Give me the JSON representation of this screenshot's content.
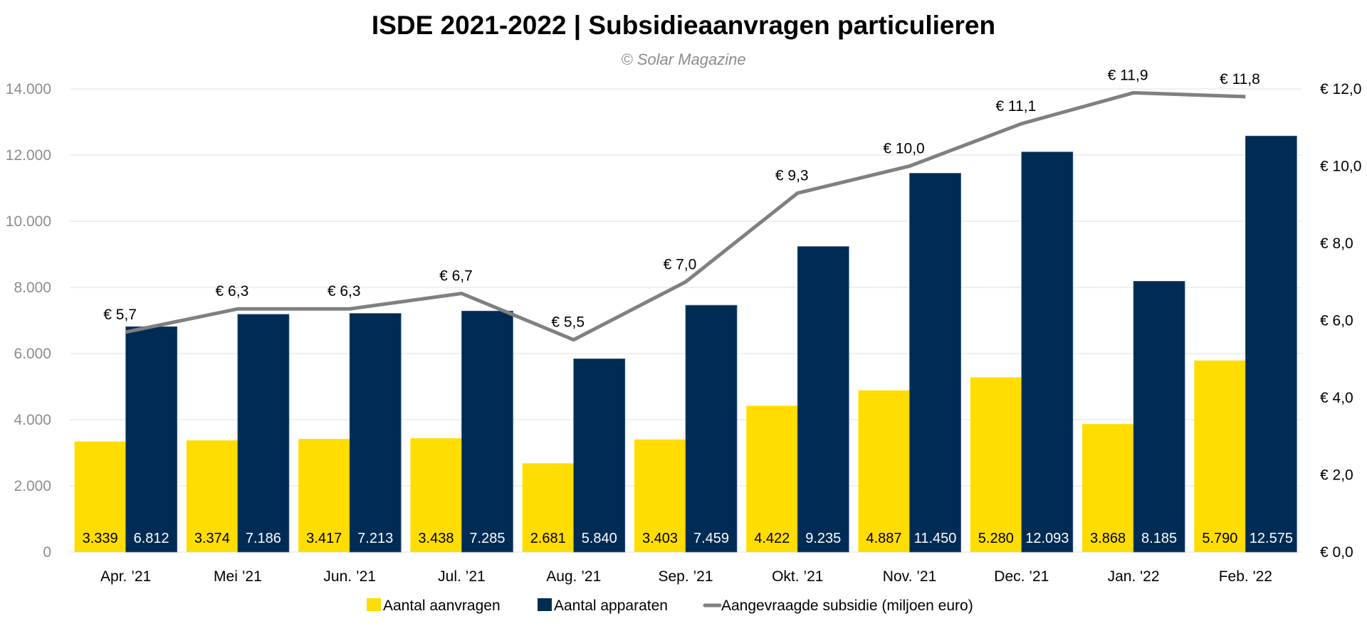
{
  "chart_data": {
    "type": "bar",
    "combo": "bar+line",
    "title": "ISDE 2021-2022 | Subsidieaanvragen particulieren",
    "subtitle": "© Solar Magazine",
    "categories": [
      "Apr. ’21",
      "Mei ’21",
      "Jun. ’21",
      "Jul. ’21",
      "Aug. ’21",
      "Sep. ’21",
      "Okt. ’21",
      "Nov. ’21",
      "Dec. ’21",
      "Jan. '22",
      "Feb. '22"
    ],
    "series": [
      {
        "name": "Aantal aanvragen",
        "type": "bar",
        "axis": "left",
        "color": "#ffdd00",
        "values": [
          3339,
          3374,
          3417,
          3438,
          2681,
          3403,
          4422,
          4887,
          5280,
          3868,
          5790
        ],
        "labels": [
          "3.339",
          "3.374",
          "3.417",
          "3.438",
          "2.681",
          "3.403",
          "4.422",
          "4.887",
          "5.280",
          "3.868",
          "5.790"
        ]
      },
      {
        "name": "Aantal apparaten",
        "type": "bar",
        "axis": "left",
        "color": "#002b54",
        "values": [
          6812,
          7186,
          7213,
          7285,
          5840,
          7459,
          9235,
          11450,
          12093,
          8185,
          12575
        ],
        "labels": [
          "6.812",
          "7.186",
          "7.213",
          "7.285",
          "5.840",
          "7.459",
          "9.235",
          "11.450",
          "12.093",
          "8.185",
          "12.575"
        ]
      },
      {
        "name": "Aangevraagde subsidie (miljoen euro)",
        "type": "line",
        "axis": "right",
        "color": "#808080",
        "values": [
          5.7,
          6.3,
          6.3,
          6.7,
          5.5,
          7.0,
          9.3,
          10.0,
          11.1,
          11.9,
          11.8
        ],
        "labels": [
          "€ 5,7",
          "€ 6,3",
          "€ 6,3",
          "€ 6,7",
          "€ 5,5",
          "€ 7,0",
          "€ 9,3",
          "€ 10,0",
          "€ 11,1",
          "€ 11,9",
          "€ 11,8"
        ]
      }
    ],
    "y_left": {
      "range": [
        0,
        14000
      ],
      "ticks": [
        0,
        2000,
        4000,
        6000,
        8000,
        10000,
        12000,
        14000
      ],
      "tick_labels": [
        "0",
        "2.000",
        "4.000",
        "6.000",
        "8.000",
        "10.000",
        "12.000",
        "14.000"
      ]
    },
    "y_right": {
      "range": [
        0,
        12
      ],
      "ticks": [
        0,
        2,
        4,
        6,
        8,
        10,
        12
      ],
      "tick_labels": [
        "€ 0,0",
        "€ 2,0",
        "€ 4,0",
        "€ 6,0",
        "€ 8,0",
        "€ 10,0",
        "€ 12,0"
      ]
    },
    "xlabel": "",
    "ylabel": "",
    "grid": true,
    "legend_position": "bottom-center"
  }
}
